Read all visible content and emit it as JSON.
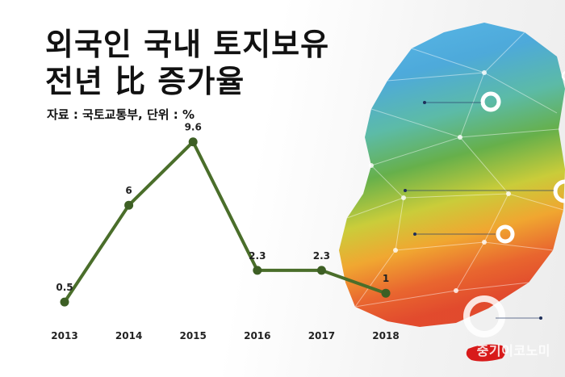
{
  "title": {
    "line1": "외국인 국내 토지보유",
    "line2": "전년 比 증가율"
  },
  "source": "자료 : 국토교통부, 단위 : %",
  "watermark": "중기이코노미",
  "colors": {
    "line": "#4a6e2a",
    "marker": "#3d5f24",
    "label": "#222222"
  },
  "chart_data": {
    "type": "line",
    "categories": [
      "2013",
      "2014",
      "2015",
      "2016",
      "2017",
      "2018"
    ],
    "values": [
      0.5,
      6,
      9.6,
      2.3,
      2.3,
      1
    ],
    "data_labels": [
      "0.5",
      "6",
      "9.6",
      "2.3",
      "2.3",
      "1"
    ],
    "ylim": [
      0,
      10
    ],
    "grid": false,
    "legend": "none"
  }
}
